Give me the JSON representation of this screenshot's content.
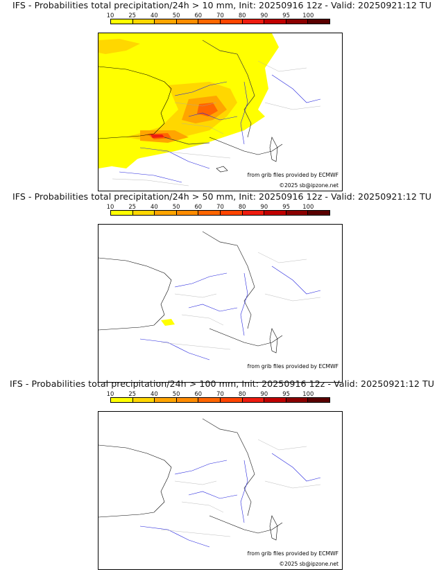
{
  "colorbar": {
    "labels": [
      "10",
      "25",
      "40",
      "50",
      "60",
      "70",
      "80",
      "90",
      "95",
      "100"
    ],
    "colors": [
      "#ffff00",
      "#ffd700",
      "#ffa500",
      "#ff8c00",
      "#ff6600",
      "#ff4500",
      "#ee1c10",
      "#c00000",
      "#8b0000",
      "#5a0000"
    ]
  },
  "credits": {
    "source": "from grib files provided by ECMWF",
    "copyright": "©2025 sb@ipzone.net"
  },
  "panels": [
    {
      "title": "IFS - Probabilities total precipitation/24h > 10 mm, Init: 20250916 12z - Valid: 20250921:12 TU",
      "threshold_mm": 10
    },
    {
      "title": "IFS - Probabilities total precipitation/24h > 50 mm, Init: 20250916 12z - Valid: 20250921:12 TU",
      "threshold_mm": 50
    },
    {
      "title": "IFS - Probabilities total precipitation/24h > 100 mm, Init: 20250916 12z - Valid: 20250921:12 TU",
      "threshold_mm": 100
    }
  ]
}
